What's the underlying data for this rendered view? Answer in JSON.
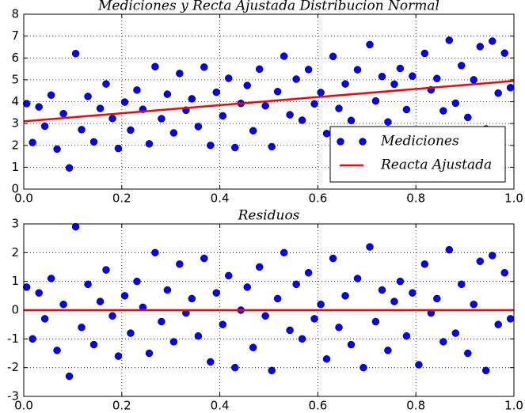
{
  "chart_data": [
    {
      "type": "scatter",
      "title": "Mediciones y Recta Ajustada Distribucion Normal",
      "series": [
        {
          "name": "Mediciones",
          "color": "#0000ff",
          "marker": "dot",
          "x": [
            0.006,
            0.018,
            0.031,
            0.043,
            0.056,
            0.068,
            0.081,
            0.093,
            0.106,
            0.118,
            0.131,
            0.143,
            0.156,
            0.168,
            0.181,
            0.193,
            0.206,
            0.218,
            0.231,
            0.243,
            0.256,
            0.268,
            0.281,
            0.293,
            0.306,
            0.318,
            0.331,
            0.343,
            0.356,
            0.368,
            0.381,
            0.393,
            0.406,
            0.418,
            0.431,
            0.443,
            0.456,
            0.468,
            0.481,
            0.493,
            0.506,
            0.518,
            0.531,
            0.543,
            0.556,
            0.568,
            0.581,
            0.593,
            0.606,
            0.618,
            0.631,
            0.643,
            0.656,
            0.668,
            0.681,
            0.693,
            0.706,
            0.718,
            0.731,
            0.743,
            0.756,
            0.768,
            0.781,
            0.793,
            0.806,
            0.818,
            0.831,
            0.843,
            0.856,
            0.868,
            0.881,
            0.893,
            0.906,
            0.918,
            0.931,
            0.943,
            0.956,
            0.968,
            0.981,
            0.993
          ],
          "values": [
            3.91,
            2.13,
            3.76,
            2.88,
            4.3,
            1.83,
            3.45,
            0.97,
            6.2,
            2.72,
            4.24,
            2.16,
            3.69,
            4.81,
            3.23,
            1.86,
            3.98,
            2.7,
            4.53,
            3.65,
            2.07,
            5.6,
            3.22,
            4.34,
            2.57,
            5.29,
            3.61,
            4.13,
            2.86,
            5.58,
            2.0,
            4.43,
            3.35,
            5.07,
            1.9,
            3.92,
            4.74,
            2.67,
            5.49,
            3.81,
            1.94,
            4.46,
            6.08,
            3.4,
            5.03,
            3.15,
            5.47,
            3.9,
            4.42,
            2.54,
            6.07,
            3.69,
            4.81,
            3.14,
            5.46,
            2.38,
            6.61,
            4.03,
            5.15,
            3.07,
            4.8,
            5.52,
            3.64,
            5.17,
            2.69,
            6.21,
            4.54,
            5.06,
            3.58,
            6.81,
            3.93,
            5.65,
            3.28,
            5.0,
            6.52,
            2.75,
            6.77,
            4.39,
            6.22,
            4.64
          ]
        },
        {
          "name": "Reacta Ajustada",
          "color": "#ff0000",
          "marker": "line",
          "x": [
            0,
            1
          ],
          "values": [
            3.1,
            4.95
          ]
        }
      ],
      "xlim": [
        0,
        1
      ],
      "ylim": [
        0,
        8
      ],
      "xticks": [
        {
          "value": 0,
          "label": "0.0"
        },
        0.2,
        0.4,
        0.6,
        0.8,
        {
          "value": 1,
          "label": "1.0"
        }
      ],
      "yticks": [
        0,
        1,
        2,
        3,
        4,
        5,
        6,
        7,
        8
      ],
      "grid": true,
      "legend": "lower right"
    },
    {
      "type": "scatter",
      "title": "Residuos",
      "series": [
        {
          "color": "#0000ff",
          "marker": "dot",
          "x": [
            0.006,
            0.018,
            0.031,
            0.043,
            0.056,
            0.068,
            0.081,
            0.093,
            0.106,
            0.118,
            0.131,
            0.143,
            0.156,
            0.168,
            0.181,
            0.193,
            0.206,
            0.218,
            0.231,
            0.243,
            0.256,
            0.268,
            0.281,
            0.293,
            0.306,
            0.318,
            0.331,
            0.343,
            0.356,
            0.368,
            0.381,
            0.393,
            0.406,
            0.418,
            0.431,
            0.443,
            0.456,
            0.468,
            0.481,
            0.493,
            0.506,
            0.518,
            0.531,
            0.543,
            0.556,
            0.568,
            0.581,
            0.593,
            0.606,
            0.618,
            0.631,
            0.643,
            0.656,
            0.668,
            0.681,
            0.693,
            0.706,
            0.718,
            0.731,
            0.743,
            0.756,
            0.768,
            0.781,
            0.793,
            0.806,
            0.818,
            0.831,
            0.843,
            0.856,
            0.868,
            0.881,
            0.893,
            0.906,
            0.918,
            0.931,
            0.943,
            0.956,
            0.968,
            0.981,
            0.993
          ],
          "values": [
            0.8,
            -1.0,
            0.6,
            -0.3,
            1.1,
            -1.4,
            0.2,
            -2.3,
            2.9,
            -0.6,
            0.9,
            -1.2,
            0.3,
            1.4,
            -0.2,
            -1.6,
            0.5,
            -0.8,
            1.0,
            0.1,
            -1.5,
            2.0,
            -0.4,
            0.7,
            -1.1,
            1.6,
            -0.1,
            0.4,
            -0.9,
            1.8,
            -1.8,
            0.6,
            -0.5,
            1.2,
            -2.0,
            0.0,
            0.8,
            -1.3,
            1.5,
            -0.2,
            -2.1,
            0.4,
            2.0,
            -0.7,
            0.9,
            -1.0,
            1.3,
            -0.3,
            0.2,
            -1.7,
            1.8,
            -0.6,
            0.5,
            -1.2,
            1.1,
            -2.0,
            2.2,
            -0.4,
            0.7,
            -1.4,
            0.3,
            1.0,
            -0.9,
            0.6,
            -1.9,
            1.6,
            -0.1,
            0.4,
            -1.1,
            2.1,
            -0.8,
            0.9,
            -1.5,
            0.2,
            1.7,
            -2.1,
            1.9,
            -0.5,
            1.3,
            -0.3
          ]
        },
        {
          "color": "#ff0000",
          "marker": "line",
          "x": [
            0,
            1
          ],
          "values": [
            0,
            0
          ]
        }
      ],
      "xlim": [
        0,
        1
      ],
      "ylim": [
        -3,
        3
      ],
      "xticks": [
        {
          "value": 0,
          "label": "0.0"
        },
        0.2,
        0.4,
        0.6,
        0.8,
        {
          "value": 1,
          "label": "1.0"
        }
      ],
      "yticks": [
        -3,
        -2,
        -1,
        0,
        1,
        2,
        3
      ],
      "grid": true
    }
  ]
}
